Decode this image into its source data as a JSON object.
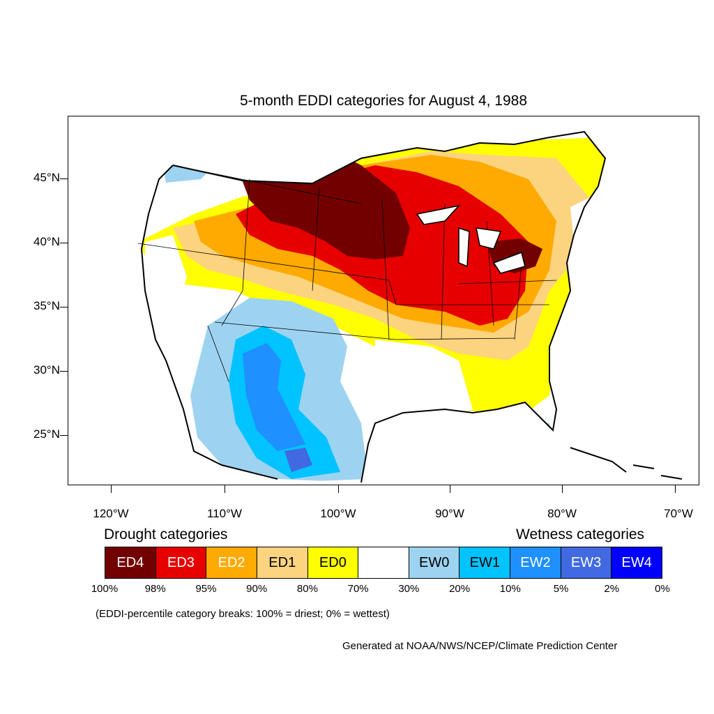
{
  "title": "5-month EDDI categories for August 4, 1988",
  "lat_labels": [
    "45°N",
    "40°N",
    "35°N",
    "30°N",
    "25°N"
  ],
  "lon_labels": [
    "120°W",
    "110°W",
    "100°W",
    "90°W",
    "80°W",
    "70°W"
  ],
  "legend": {
    "drought_heading": "Drought categories",
    "wetness_heading": "Wetness categories",
    "categories": [
      {
        "label": "ED4",
        "color": "#730000",
        "text_color": "#ffffff"
      },
      {
        "label": "ED3",
        "color": "#e60000",
        "text_color": "#ffffff"
      },
      {
        "label": "ED2",
        "color": "#ffaa00",
        "text_color": "#ffffff"
      },
      {
        "label": "ED1",
        "color": "#fcd37f",
        "text_color": "#000000"
      },
      {
        "label": "ED0",
        "color": "#ffff00",
        "text_color": "#000000"
      },
      {
        "label": "",
        "color": "#ffffff",
        "text_color": "#000000"
      },
      {
        "label": "EW0",
        "color": "#9dd3f0",
        "text_color": "#000000"
      },
      {
        "label": "EW1",
        "color": "#00c3ff",
        "text_color": "#000000"
      },
      {
        "label": "EW2",
        "color": "#1e90ff",
        "text_color": "#ffffff"
      },
      {
        "label": "EW3",
        "color": "#4169e1",
        "text_color": "#ffffff"
      },
      {
        "label": "EW4",
        "color": "#0000ff",
        "text_color": "#ffffff"
      }
    ],
    "percentiles": [
      "100%",
      "98%",
      "95%",
      "90%",
      "80%",
      "70%",
      "30%",
      "20%",
      "10%",
      "5%",
      "2%",
      "0%"
    ]
  },
  "note": "(EDDI-percentile category breaks: 100% = driest; 0% = wettest)",
  "credit": "Generated at NOAA/NWS/NCEP/Climate Prediction Center"
}
